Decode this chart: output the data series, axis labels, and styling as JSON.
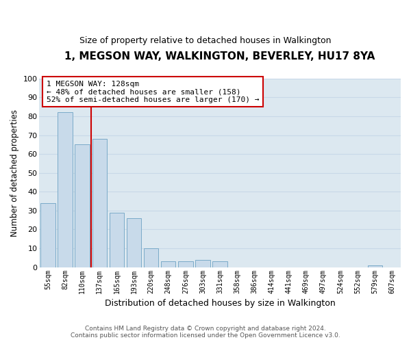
{
  "title": "1, MEGSON WAY, WALKINGTON, BEVERLEY, HU17 8YA",
  "subtitle": "Size of property relative to detached houses in Walkington",
  "xlabel": "Distribution of detached houses by size in Walkington",
  "ylabel": "Number of detached properties",
  "bar_color": "#c8daea",
  "bar_edge_color": "#7aaac8",
  "categories": [
    "55sqm",
    "82sqm",
    "110sqm",
    "137sqm",
    "165sqm",
    "193sqm",
    "220sqm",
    "248sqm",
    "276sqm",
    "303sqm",
    "331sqm",
    "358sqm",
    "386sqm",
    "414sqm",
    "441sqm",
    "469sqm",
    "497sqm",
    "524sqm",
    "552sqm",
    "579sqm",
    "607sqm"
  ],
  "values": [
    34,
    82,
    65,
    68,
    29,
    26,
    10,
    3,
    3,
    4,
    3,
    0,
    0,
    0,
    0,
    0,
    0,
    0,
    0,
    1,
    0
  ],
  "annotation_line1": "1 MEGSON WAY: 128sqm",
  "annotation_line2": "← 48% of detached houses are smaller (158)",
  "annotation_line3": "52% of semi-detached houses are larger (170) →",
  "annotation_box_color": "#ffffff",
  "annotation_box_edge": "#cc0000",
  "ylim": [
    0,
    100
  ],
  "yticks": [
    0,
    10,
    20,
    30,
    40,
    50,
    60,
    70,
    80,
    90,
    100
  ],
  "grid_color": "#c8d8e8",
  "background_color": "#dce8f0",
  "footer_line1": "Contains HM Land Registry data © Crown copyright and database right 2024.",
  "footer_line2": "Contains public sector information licensed under the Open Government Licence v3.0.",
  "vline_color": "#cc0000",
  "vline_x": 2.5,
  "title_fontsize": 11,
  "subtitle_fontsize": 9
}
